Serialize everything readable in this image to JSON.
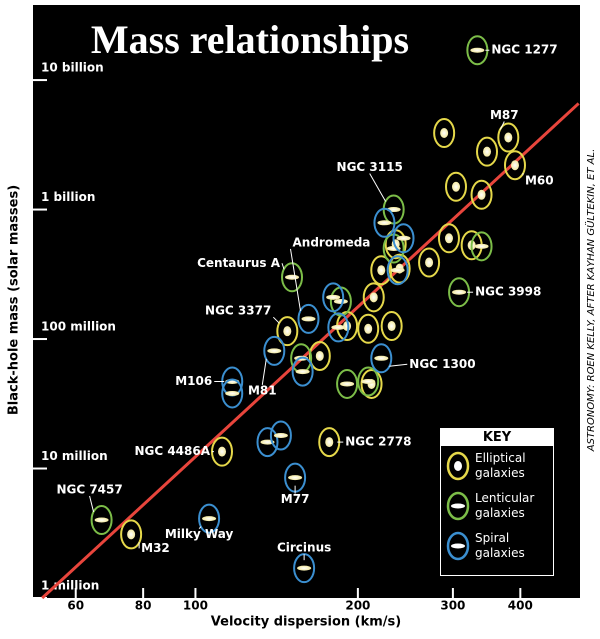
{
  "chart_data": {
    "type": "scatter",
    "title": "Mass relationships",
    "x_label": "Velocity dispersion (km/s)",
    "y_label": "Black-hole mass (solar masses)",
    "credit": "ASTRONOMY: ROEN KELLY, AFTER KAYHAN GÜLTEKIN, ET AL.",
    "legend_title": "KEY",
    "log_x": true,
    "log_y": true,
    "xlim": [
      50,
      516
    ],
    "ylim": [
      1000000,
      38000000000
    ],
    "xticks": [
      60,
      80,
      100,
      200,
      300,
      400
    ],
    "yticks": [
      {
        "value": 1000000,
        "label": "1 million"
      },
      {
        "value": 10000000,
        "label": "10 million"
      },
      {
        "value": 100000000,
        "label": "100 million"
      },
      {
        "value": 1000000000,
        "label": "1 billion"
      },
      {
        "value": 10000000000,
        "label": "10 billion"
      }
    ],
    "fit_line": {
      "color": "#e8453c",
      "x": [
        52,
        513
      ],
      "y": [
        1000000,
        6600000000
      ]
    },
    "series": [
      {
        "name": "Elliptical galaxies",
        "color": "#e5d84a",
        "x": [
          380,
          391,
          148,
          112,
          76,
          177,
          289,
          304,
          347,
          339,
          295,
          271,
          239,
          221,
          214,
          191,
          209,
          231,
          235,
          212,
          170,
          325
        ],
        "y": [
          3600000000,
          2200000000,
          115000000,
          13500000,
          3100000,
          16000000,
          3900000000,
          1500000000,
          2800000000,
          1300000000,
          600000000,
          390000000,
          350000000,
          340000000,
          210000000,
          126000000,
          120000000,
          126000000,
          540000000,
          45000000,
          74000000,
          530000000
        ],
        "labels": [
          "M87",
          "M60",
          "NGC 3377",
          "NGC 4486A",
          "M32",
          "NGC 2778",
          null,
          null,
          null,
          null,
          null,
          null,
          null,
          null,
          null,
          null,
          null,
          null,
          null,
          null,
          null,
          null
        ]
      },
      {
        "name": "Lenticular galaxies",
        "color": "#7cbd48",
        "x": [
          333,
          233,
          151,
          67,
          308,
          339,
          191,
          209,
          157,
          186,
          233
        ],
        "y": [
          17000000000,
          1000000000,
          300000000,
          4000000,
          230000000,
          520000000,
          45000000,
          47000000,
          71000000,
          195000000,
          500000000
        ],
        "labels": [
          "NGC 1277",
          "NGC 3115",
          "Centaurus A",
          "NGC 7457",
          "NGC 3998",
          null,
          null,
          null,
          null,
          null,
          null
        ]
      },
      {
        "name": "Spiral galaxies",
        "color": "#3b8fd0",
        "x": [
          162,
          140,
          117,
          106,
          159,
          153,
          221,
          224,
          243,
          180,
          184,
          158,
          136,
          144,
          117,
          237
        ],
        "y": [
          143000000,
          81000000,
          47000000,
          4100000,
          1700000,
          8500000,
          71000000,
          790000000,
          600000000,
          210000000,
          123000000,
          56000000,
          16000000,
          18000000,
          38000000,
          340000000
        ],
        "labels": [
          "Andromeda",
          "M81",
          "M106",
          "Milky Way",
          "Circinus",
          "M77",
          "NGC 1300",
          null,
          null,
          null,
          null,
          null,
          null,
          null,
          null,
          null
        ]
      }
    ]
  }
}
